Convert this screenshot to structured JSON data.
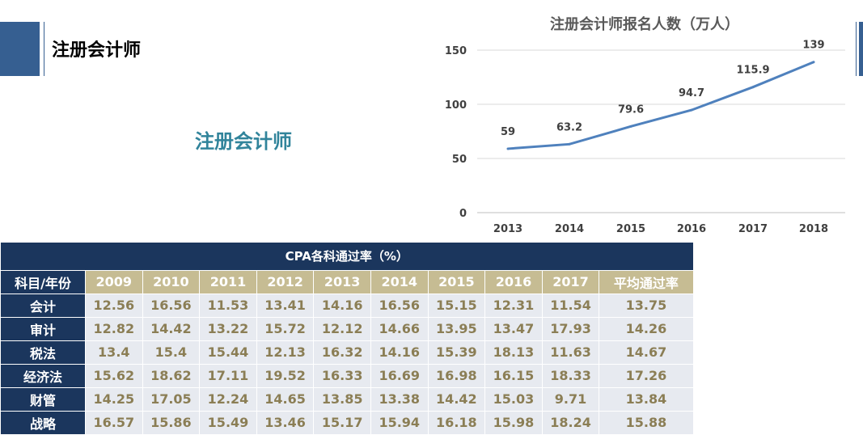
{
  "header": {
    "title": "注册会计师",
    "subtitle": "注册会计师"
  },
  "chart_data": {
    "type": "line",
    "title": "注册会计师报名人数（万人）",
    "categories": [
      "2013",
      "2014",
      "2015",
      "2016",
      "2017",
      "2018"
    ],
    "values": [
      59,
      63.2,
      79.6,
      94.7,
      115.9,
      139
    ],
    "data_labels": [
      "59",
      "63.2",
      "79.6",
      "94.7",
      "115.9",
      "139"
    ],
    "yticks": [
      "0",
      "50",
      "100",
      "150"
    ],
    "ylim": [
      0,
      150
    ],
    "grid": true,
    "color": "#4f81bd"
  },
  "table": {
    "caption": "CPA各科通过率（%）",
    "corner": "科目/年份",
    "columns": [
      "2009",
      "2010",
      "2011",
      "2012",
      "2013",
      "2014",
      "2015",
      "2016",
      "2017",
      "平均通过率"
    ],
    "rows": [
      {
        "subject": "会计",
        "values": [
          "12.56",
          "16.56",
          "11.53",
          "13.41",
          "14.16",
          "16.56",
          "15.15",
          "12.31",
          "11.54",
          "13.75"
        ]
      },
      {
        "subject": "审计",
        "values": [
          "12.82",
          "14.42",
          "13.22",
          "15.72",
          "12.12",
          "14.66",
          "13.95",
          "13.47",
          "17.93",
          "14.26"
        ]
      },
      {
        "subject": "税法",
        "values": [
          "13.4",
          "15.4",
          "15.44",
          "12.13",
          "16.32",
          "14.16",
          "15.39",
          "18.13",
          "11.63",
          "14.67"
        ]
      },
      {
        "subject": "经济法",
        "values": [
          "15.62",
          "18.62",
          "17.11",
          "19.52",
          "16.33",
          "16.69",
          "16.98",
          "16.15",
          "18.33",
          "17.26"
        ]
      },
      {
        "subject": "财管",
        "values": [
          "14.25",
          "17.05",
          "12.24",
          "14.65",
          "13.85",
          "13.38",
          "14.42",
          "15.03",
          "9.71",
          "13.84"
        ]
      },
      {
        "subject": "战略",
        "values": [
          "16.57",
          "15.86",
          "15.49",
          "13.46",
          "15.17",
          "15.94",
          "16.18",
          "15.98",
          "18.24",
          "15.88"
        ]
      }
    ]
  }
}
